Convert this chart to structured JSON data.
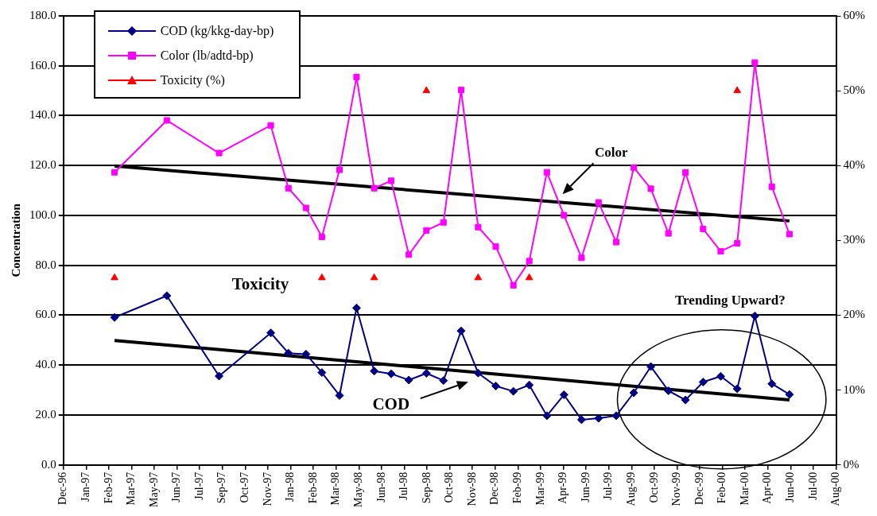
{
  "chart_data": {
    "type": "line",
    "ylabel": "Concentration",
    "x": [
      "1997-03",
      "1997-06",
      "1997-09",
      "1997-12",
      "1998-01",
      "1998-02",
      "1998-03",
      "1998-04",
      "1998-05",
      "1998-06",
      "1998-07",
      "1998-08",
      "1998-09",
      "1998-10",
      "1998-11",
      "1998-12",
      "1999-01",
      "1999-02",
      "1999-03",
      "1999-04",
      "1999-05",
      "1999-06",
      "1999-07",
      "1999-08",
      "1999-09",
      "1999-10",
      "1999-11",
      "1999-12",
      "2000-01",
      "2000-02",
      "2000-03",
      "2000-04",
      "2000-05",
      "2000-06"
    ],
    "series": [
      {
        "name": "COD (kg/kkg-day-bp)",
        "color": "#000080",
        "marker": "diamond",
        "values": [
          59.1,
          67.8,
          35.6,
          52.9,
          44.8,
          44.4,
          37.0,
          27.8,
          62.9,
          37.6,
          36.5,
          34.0,
          36.7,
          33.8,
          53.7,
          36.8,
          31.6,
          29.5,
          32.0,
          19.7,
          28.1,
          18.1,
          18.7,
          19.7,
          28.9,
          39.4,
          29.7,
          26.0,
          33.2,
          35.5,
          30.5,
          59.7,
          32.5,
          28.2
        ]
      },
      {
        "name": "Color (lb/adtd-bp)",
        "color": "#ff00ff",
        "marker": "square",
        "values": [
          117.3,
          138.1,
          125.0,
          136.1,
          110.9,
          103.0,
          91.4,
          118.3,
          155.5,
          110.9,
          113.9,
          84.3,
          94.0,
          97.2,
          150.3,
          95.3,
          87.5,
          72.0,
          81.7,
          117.3,
          100.1,
          83.0,
          105.2,
          89.3,
          119.2,
          110.7,
          92.8,
          117.2,
          94.6,
          85.6,
          88.8,
          161.3,
          111.5,
          92.5
        ]
      },
      {
        "name": "Toxicity (%)",
        "type": "scatter",
        "axis": "y2",
        "color": "#ff0000",
        "marker": "triangle",
        "x": [
          "1997-03",
          "1998-03",
          "1998-06",
          "1998-09",
          "1998-12",
          "1999-03",
          "2000-03"
        ],
        "values": [
          25,
          25,
          25,
          50,
          25,
          25,
          50
        ]
      },
      {
        "type": "line",
        "color": "#000000",
        "marker": "none",
        "x": [
          "1997-03",
          "2000-06"
        ],
        "values": [
          119.8,
          97.8
        ]
      },
      {
        "type": "line",
        "color": "#000000",
        "marker": "none",
        "x": [
          "1997-03",
          "2000-06"
        ],
        "values": [
          49.9,
          26.0
        ]
      }
    ],
    "xlim": [
      "1996-12-01",
      "2000-08-22"
    ],
    "xticks": [
      {
        "value": "1996-12-01",
        "label": "Dec-96"
      },
      {
        "value": "1997-01-10",
        "label": "Jan-97"
      },
      {
        "value": "1997-02-19",
        "label": "Feb-97"
      },
      {
        "value": "1997-03-31",
        "label": "Mar-97"
      },
      {
        "value": "1997-05-10",
        "label": "May-97"
      },
      {
        "value": "1997-06-19",
        "label": "Jun-97"
      },
      {
        "value": "1997-07-29",
        "label": "Jul-97"
      },
      {
        "value": "1997-09-07",
        "label": "Sep-97"
      },
      {
        "value": "1997-10-17",
        "label": "Oct-97"
      },
      {
        "value": "1997-11-26",
        "label": "Nov-97"
      },
      {
        "value": "1998-01-05",
        "label": "Jan-98"
      },
      {
        "value": "1998-02-14",
        "label": "Feb-98"
      },
      {
        "value": "1998-03-26",
        "label": "Mar-98"
      },
      {
        "value": "1998-05-05",
        "label": "May-98"
      },
      {
        "value": "1998-06-14",
        "label": "Jun-98"
      },
      {
        "value": "1998-07-24",
        "label": "Jul-98"
      },
      {
        "value": "1998-09-02",
        "label": "Sep-98"
      },
      {
        "value": "1998-10-12",
        "label": "Oct-98"
      },
      {
        "value": "1998-11-21",
        "label": "Nov-98"
      },
      {
        "value": "1998-12-31",
        "label": "Dec-98"
      },
      {
        "value": "1999-02-09",
        "label": "Feb-99"
      },
      {
        "value": "1999-03-21",
        "label": "Mar-99"
      },
      {
        "value": "1999-04-30",
        "label": "Apr-99"
      },
      {
        "value": "1999-06-09",
        "label": "Jun-99"
      },
      {
        "value": "1999-07-19",
        "label": "Jul-99"
      },
      {
        "value": "1999-08-28",
        "label": "Aug-99"
      },
      {
        "value": "1999-10-07",
        "label": "Oct-99"
      },
      {
        "value": "1999-11-16",
        "label": "Nov-99"
      },
      {
        "value": "1999-12-26",
        "label": "Dec-99"
      },
      {
        "value": "2000-02-04",
        "label": "Feb-00"
      },
      {
        "value": "2000-03-15",
        "label": "Mar-00"
      },
      {
        "value": "2000-04-24",
        "label": "Apr-00"
      },
      {
        "value": "2000-06-03",
        "label": "Jun-00"
      },
      {
        "value": "2000-07-13",
        "label": "Jul-00"
      },
      {
        "value": "2000-08-22",
        "label": "Aug-00"
      }
    ],
    "ylim": [
      0,
      180
    ],
    "yticks": [
      {
        "value": 0,
        "label": "0.0"
      },
      {
        "value": 20,
        "label": "20.0"
      },
      {
        "value": 40,
        "label": "40.0"
      },
      {
        "value": 60,
        "label": "60.0"
      },
      {
        "value": 80,
        "label": "80.0"
      },
      {
        "value": 100,
        "label": "100.0"
      },
      {
        "value": 120,
        "label": "120.0"
      },
      {
        "value": 140,
        "label": "140.0"
      },
      {
        "value": 160,
        "label": "160.0"
      },
      {
        "value": 180,
        "label": "180.0"
      }
    ],
    "y2lim": [
      0,
      60
    ],
    "y2ticks": [
      {
        "value": 0,
        "label": "0%"
      },
      {
        "value": 10,
        "label": "10%"
      },
      {
        "value": 20,
        "label": "20%"
      },
      {
        "value": 30,
        "label": "30%"
      },
      {
        "value": 40,
        "label": "40%"
      },
      {
        "value": 50,
        "label": "50%"
      },
      {
        "value": 60,
        "label": "60%"
      }
    ],
    "grid": "y",
    "legend": "top left",
    "line_style": "solid",
    "annotations": [
      "Color",
      "Toxicity",
      "COD",
      "Trending Upward?"
    ]
  }
}
